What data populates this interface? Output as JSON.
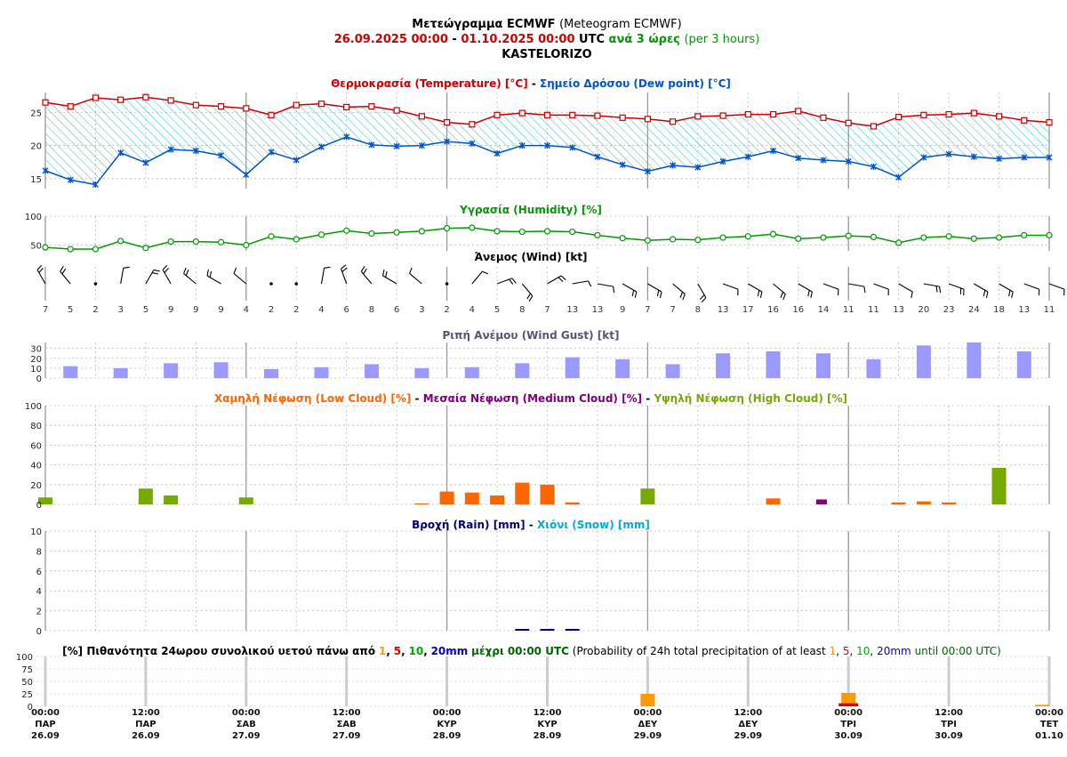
{
  "title": {
    "line1_greek": "Μετεώγραμμα ECMWF",
    "line1_en": "(Meteogram ECMWF)",
    "start": "26.09.2025 00:00",
    "dash": "-",
    "end": "01.10.2025 00:00",
    "utc": "UTC",
    "step_greek": "ανά 3 ώρες",
    "step_en": "(per 3 hours)",
    "location": "KASTELORIZO"
  },
  "colors": {
    "temp": "#cc0000",
    "dew": "#0055cc",
    "humidity": "#009900",
    "gust": "#9999ff",
    "gust_title": "#555577",
    "low": "#ff6600",
    "medium": "#800080",
    "high": "#77aa00",
    "rain": "#000080",
    "snow": "#00aadd",
    "p1": "#ff9900",
    "p5": "#dd0000",
    "p10": "#00aa00",
    "p20": "#0000cc"
  },
  "x_axis": {
    "times": [
      "00:00",
      "12:00",
      "00:00",
      "12:00",
      "00:00",
      "12:00",
      "00:00",
      "12:00",
      "00:00",
      "12:00",
      "00:00"
    ],
    "days": [
      "ΠΑΡ",
      "ΠΑΡ",
      "ΣΑΒ",
      "ΣΑΒ",
      "ΚΥΡ",
      "ΚΥΡ",
      "ΔΕΥ",
      "ΔΕΥ",
      "ΤΡΙ",
      "ΤΡΙ",
      "ΤΕΤ"
    ],
    "dates": [
      "26.09",
      "26.09",
      "27.09",
      "27.09",
      "28.09",
      "28.09",
      "29.09",
      "29.09",
      "30.09",
      "30.09",
      "01.10"
    ]
  },
  "chart_data": [
    {
      "type": "line",
      "title_greek_temp": "Θερμοκρασία (Temperature) [°C]",
      "sep": "-",
      "title_greek_dew": "Σημείο Δρόσου (Dew point) [°C]",
      "y_ticks": [
        "15",
        "20",
        "25"
      ],
      "ylim": [
        13.5,
        28
      ],
      "series": [
        {
          "name": "Θερμοκρασία (Temperature) [°C]",
          "values": [
            26.5,
            25.9,
            27.2,
            26.9,
            27.3,
            26.8,
            26.1,
            25.9,
            25.6,
            24.6,
            26.1,
            26.3,
            25.8,
            25.9,
            25.3,
            24.4,
            23.5,
            23.2,
            24.6,
            24.9,
            24.6,
            24.6,
            24.5,
            24.2,
            24.0,
            23.6,
            24.4,
            24.5,
            24.7,
            24.7,
            25.2,
            24.2,
            23.4,
            22.9,
            24.3,
            24.6,
            24.7,
            24.9,
            24.4,
            23.8,
            23.5
          ]
        },
        {
          "name": "Σημείο Δρόσου (Dew point) [°C]",
          "values": [
            16.2,
            14.8,
            14.1,
            18.9,
            17.4,
            19.4,
            19.2,
            18.5,
            15.6,
            19.0,
            17.8,
            19.8,
            21.3,
            20.1,
            19.9,
            20.0,
            20.6,
            20.3,
            18.8,
            20.0,
            20.0,
            19.7,
            18.3,
            17.1,
            16.1,
            17.0,
            16.7,
            17.6,
            18.3,
            19.2,
            18.1,
            17.8,
            17.6,
            16.8,
            15.2,
            18.2,
            18.7,
            18.3,
            18.0,
            18.2,
            18.2
          ]
        }
      ]
    },
    {
      "type": "line",
      "title": "Υγρασία (Humidity) [%]",
      "y_ticks": [
        "50",
        "100"
      ],
      "ylim": [
        40,
        100
      ],
      "values": [
        46,
        43,
        43,
        57,
        45,
        56,
        56,
        55,
        50,
        65,
        60,
        68,
        75,
        70,
        72,
        74,
        79,
        80,
        74,
        73,
        74,
        73,
        67,
        62,
        58,
        60,
        59,
        63,
        65,
        69,
        61,
        63,
        66,
        64,
        54,
        63,
        65,
        61,
        63,
        67,
        67
      ]
    },
    {
      "type": "table",
      "title": "Άνεμος (Wind) [kt]",
      "speeds": [
        "7",
        "5",
        "2",
        "3",
        "5",
        "9",
        "9",
        "9",
        "4",
        "2",
        "2",
        "4",
        "6",
        "8",
        "6",
        "3",
        "2",
        "4",
        "5",
        "8",
        "7",
        "13",
        "13",
        "9",
        "7",
        "7",
        "8",
        "13",
        "17",
        "16",
        "16",
        "14",
        "11",
        "11",
        "13",
        "20",
        "23",
        "24",
        "18",
        "13",
        "11"
      ]
    },
    {
      "type": "bar",
      "title": "Ριπή Ανέμου (Wind Gust) [kt]",
      "y_ticks": [
        "0",
        "10",
        "20",
        "30"
      ],
      "ylim": [
        0,
        36
      ],
      "values": [
        null,
        12,
        null,
        10,
        null,
        15,
        null,
        16,
        null,
        9,
        null,
        11,
        null,
        14,
        null,
        10,
        null,
        11,
        null,
        15,
        null,
        21,
        null,
        19,
        null,
        14,
        null,
        25,
        null,
        27,
        null,
        25,
        null,
        19,
        null,
        33,
        null,
        36,
        null,
        27
      ]
    },
    {
      "type": "bar",
      "title_low": "Χαμηλή Νέφωση (Low Cloud) [%]",
      "title_medium": "Μεσαία Νέφωση (Medium Cloud) [%]",
      "title_high": "Υψηλή Νέφωση (High Cloud) [%]",
      "sep": "-",
      "y_ticks": [
        "0",
        "20",
        "40",
        "60",
        "80",
        "100"
      ],
      "ylim": [
        0,
        100
      ],
      "series": [
        {
          "name": "Χαμηλή Νέφωση (Low Cloud) [%]",
          "values": [
            0,
            0,
            0,
            0,
            0,
            0,
            0,
            0,
            0,
            0,
            0,
            0,
            0,
            0,
            0,
            1,
            13,
            12,
            9,
            22,
            20,
            2,
            0,
            0,
            0,
            0,
            0,
            0,
            0,
            6,
            0,
            0,
            0,
            0,
            2,
            3,
            2,
            0,
            0,
            0,
            0
          ]
        },
        {
          "name": "Μεσαία Νέφωση (Medium Cloud) [%]",
          "values": [
            0,
            0,
            0,
            0,
            4,
            3,
            0,
            0,
            0,
            0,
            0,
            0,
            0,
            0,
            0,
            0,
            0,
            0,
            0,
            0,
            0,
            0,
            0,
            0,
            0,
            0,
            0,
            0,
            0,
            0,
            0,
            5,
            0,
            0,
            0,
            0,
            0,
            0,
            0,
            0,
            0
          ]
        },
        {
          "name": "Υψηλή Νέφωση (High Cloud) [%]",
          "values": [
            7,
            0,
            0,
            0,
            16,
            9,
            0,
            0,
            7,
            0,
            0,
            0,
            0,
            0,
            0,
            0,
            0,
            0,
            0,
            0,
            0,
            0,
            0,
            0,
            16,
            0,
            0,
            0,
            0,
            0,
            0,
            0,
            0,
            0,
            0,
            0,
            0,
            0,
            37,
            0,
            0
          ]
        }
      ]
    },
    {
      "type": "bar",
      "title_rain": "Βροχή (Rain) [mm]",
      "sep": "-",
      "title_snow": "Χιόνι (Snow) [mm]",
      "y_ticks": [
        "0",
        "2",
        "4",
        "6",
        "8",
        "10"
      ],
      "ylim": [
        0,
        10
      ],
      "series": [
        {
          "name": "Βροχή (Rain) [mm]",
          "values": [
            0,
            0,
            0,
            0,
            0,
            0,
            0,
            0,
            0,
            0,
            0,
            0,
            0,
            0,
            0,
            0,
            0,
            0,
            0,
            0.05,
            0.05,
            0.05,
            0,
            0,
            0,
            0,
            0,
            0,
            0,
            0,
            0,
            0,
            0,
            0,
            0,
            0,
            0,
            0,
            0,
            0,
            0
          ]
        },
        {
          "name": "Χιόνι (Snow) [mm]",
          "values": []
        }
      ]
    },
    {
      "type": "bar",
      "title_prefix": "[%] Πιθανότητα 24ωρου συνολικού υετού πάνω από",
      "t1": "1",
      "c1": ",",
      "t5": "5",
      "c2": ",",
      "t10": "10",
      "c3": ",",
      "t20": "20mm",
      "until_greek": "μέχρι 00:00 UTC",
      "en_prefix": "(Probability of 24h total precipitation of at least",
      "e1": "1",
      "ec1": ",",
      "e5": "5",
      "ec2": ",",
      "e10": "10",
      "ec3": ",",
      "e20": "20mm",
      "en_until": "until 00:00 UTC)",
      "y_ticks": [
        "0",
        "25",
        "50",
        "75",
        "100"
      ],
      "ylim": [
        0,
        100
      ],
      "categories": [
        "27.09",
        "28.09",
        "29.09",
        "30.09",
        "01.10"
      ],
      "series": [
        {
          "name": "1",
          "values": [
            0,
            0,
            25,
            27,
            3
          ]
        },
        {
          "name": "5",
          "values": [
            0,
            0,
            0,
            6,
            0
          ]
        },
        {
          "name": "10",
          "values": [
            0,
            0,
            0,
            0,
            0
          ]
        },
        {
          "name": "20mm",
          "values": [
            0,
            0,
            0,
            0,
            0
          ]
        }
      ]
    }
  ]
}
